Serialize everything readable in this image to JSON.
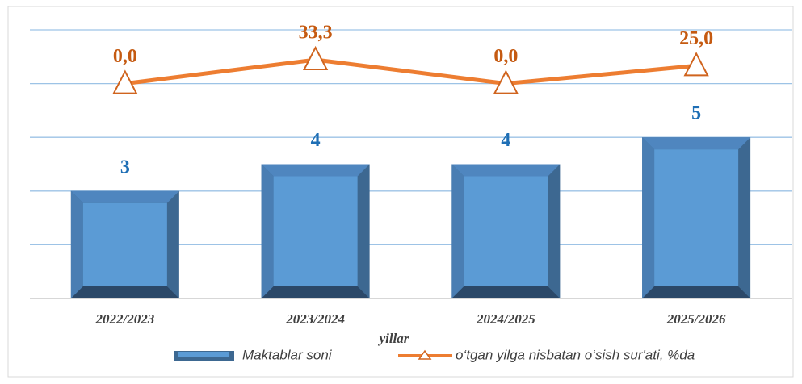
{
  "chart_data": {
    "type": "bar_line",
    "x_label": "yillar",
    "categories": [
      "2022/2023",
      "2023/2024",
      "2024/2025",
      "2025/2026"
    ],
    "series": [
      {
        "name": "Maktablar soni",
        "type": "bar",
        "color": "#5b9bd5",
        "values": [
          3,
          4,
          4,
          5
        ]
      },
      {
        "name": "o‘tgan yilga nisbatan o‘sish sur'ati, %da",
        "type": "line",
        "axis": "y2",
        "color": "#ed7d31",
        "values": [
          0,
          33.3,
          0,
          25
        ],
        "value_labels": [
          "0,0",
          "33,3",
          "0,0",
          "25,0"
        ]
      }
    ],
    "ylim": [
      -1,
      9
    ],
    "yticks": [
      -1,
      1,
      3,
      5,
      7,
      9
    ],
    "y2lim": [
      -300,
      75
    ],
    "grid": true,
    "legend": "bottom"
  }
}
